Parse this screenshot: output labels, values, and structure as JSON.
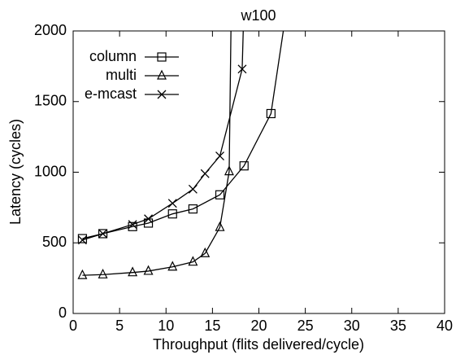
{
  "chart_data": {
    "type": "line",
    "title": "w100",
    "x_label": "Throughput (flits delivered/cycle)",
    "y_label": "Latency (cycles)",
    "xlim": [
      0,
      40
    ],
    "ylim": [
      0,
      2000
    ],
    "xticks": [
      0,
      5,
      10,
      15,
      20,
      25,
      30,
      35,
      40
    ],
    "yticks": [
      0,
      500,
      1000,
      1500,
      2000
    ],
    "grid": false,
    "legend": "upper-left",
    "series": [
      {
        "name": "column",
        "color": "#000000",
        "marker": "square",
        "x": [
          1,
          3.2,
          6.4,
          8.1,
          10.7,
          12.9,
          15.8,
          18.4,
          21.3,
          23.2
        ],
        "values": [
          530,
          565,
          615,
          640,
          705,
          740,
          840,
          1045,
          1415,
          2250
        ]
      },
      {
        "name": "multi",
        "color": "#000000",
        "marker": "triangle",
        "x": [
          1,
          3.2,
          6.4,
          8.1,
          10.7,
          12.9,
          14.2,
          15.8,
          16.8,
          17.05
        ],
        "values": [
          270,
          275,
          290,
          300,
          330,
          365,
          425,
          610,
          1005,
          2300
        ]
      },
      {
        "name": "e-mcast",
        "color": "#000000",
        "marker": "cross",
        "x": [
          1,
          3.2,
          6.4,
          8.1,
          10.7,
          12.9,
          14.2,
          15.8,
          18.2,
          18.4
        ],
        "values": [
          520,
          565,
          630,
          670,
          780,
          880,
          990,
          1115,
          1730,
          2200
        ]
      }
    ]
  }
}
